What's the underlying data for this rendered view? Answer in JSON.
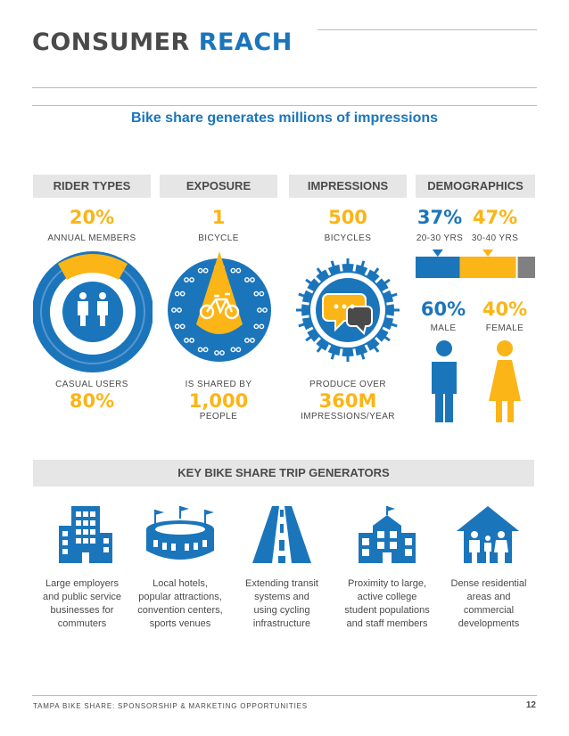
{
  "header": {
    "title_part1": "CONSUMER",
    "title_part2": "REACH"
  },
  "subtitle": "Bike share generates millions of impressions",
  "columns": {
    "rider_types": {
      "heading": "RIDER TYPES",
      "annual_pct": "20%",
      "annual_label": "ANNUAL MEMBERS",
      "casual_label": "CASUAL USERS",
      "casual_pct": "80%"
    },
    "exposure": {
      "heading": "EXPOSURE",
      "top_value": "1",
      "top_label": "BICYCLE",
      "shared_label": "IS SHARED BY",
      "shared_value": "1,000",
      "shared_unit": "PEOPLE"
    },
    "impressions": {
      "heading": "IMPRESSIONS",
      "top_value": "500",
      "top_label": "BICYCLES",
      "produce_label": "PRODUCE OVER",
      "produce_value": "360M",
      "produce_unit": "IMPRESSIONS/YEAR"
    },
    "demographics": {
      "heading": "DEMOGRAPHICS",
      "age1_pct": "37%",
      "age1_label": "20-30 YRS",
      "age1_value": 37,
      "age2_pct": "47%",
      "age2_label": "30-40 YRS",
      "age2_value": 47,
      "male_pct": "60%",
      "male_label": "MALE",
      "female_pct": "40%",
      "female_label": "FEMALE"
    }
  },
  "generators": {
    "heading": "KEY BIKE SHARE TRIP GENERATORS",
    "items": [
      {
        "icon": "office-building-icon",
        "lines": [
          "Large employers",
          "and public service",
          "businesses for",
          "commuters"
        ]
      },
      {
        "icon": "stadium-icon",
        "lines": [
          "Local hotels,",
          "popular attractions,",
          "convention centers,",
          "sports venues"
        ]
      },
      {
        "icon": "road-icon",
        "lines": [
          "Extending transit",
          "systems and",
          "using cycling",
          "infrastructure"
        ]
      },
      {
        "icon": "college-building-icon",
        "lines": [
          "Proximity to large,",
          "active college",
          "student populations",
          "and staff members"
        ]
      },
      {
        "icon": "house-family-icon",
        "lines": [
          "Dense residential",
          "areas and",
          "commercial",
          "developments"
        ]
      }
    ]
  },
  "footer": {
    "left": "TAMPA BIKE SHARE: SPONSORSHIP & MARKETING OPPORTUNITIES",
    "page": "12"
  },
  "colors": {
    "blue": "#1b75bb",
    "yellow": "#fbb516",
    "gray": "#4a4a4a",
    "light_gray": "#e6e6e6"
  }
}
